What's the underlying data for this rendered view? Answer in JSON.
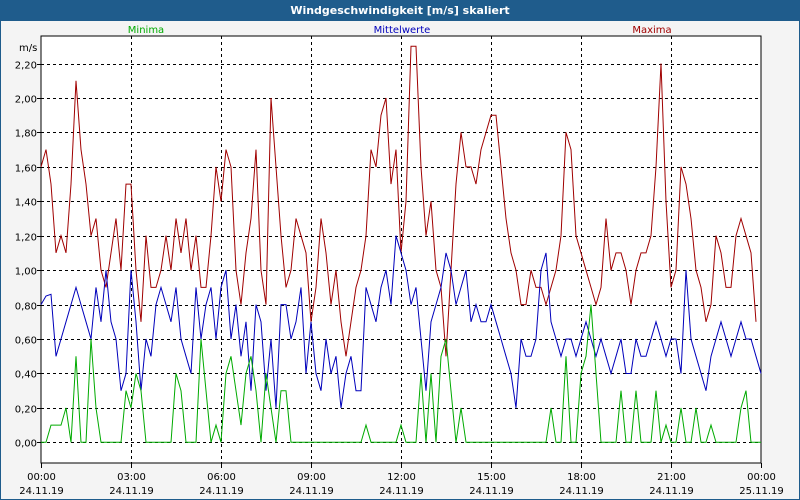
{
  "window": {
    "title": "Windgeschwindigkeit [m/s] skaliert"
  },
  "colors": {
    "min": "#00aa00",
    "mean": "#0000bb",
    "max": "#a00000",
    "titlebar": "#1f5c8c",
    "grid": "#000000"
  },
  "chart_data": {
    "type": "line",
    "title": "Windgeschwindigkeit [m/s] skaliert",
    "ylabel": "m/s",
    "ylim": [
      -0.12,
      2.36
    ],
    "yticks": [
      "0,00",
      "0,20",
      "0,40",
      "0,60",
      "0,80",
      "1,00",
      "1,20",
      "1,40",
      "1,60",
      "1,80",
      "2,00",
      "2,20"
    ],
    "xrange_hours": [
      0,
      24
    ],
    "xticks": [
      {
        "time": "00:00",
        "date": "24.11.19"
      },
      {
        "time": "03:00",
        "date": "24.11.19"
      },
      {
        "time": "06:00",
        "date": "24.11.19"
      },
      {
        "time": "09:00",
        "date": "24.11.19"
      },
      {
        "time": "12:00",
        "date": "24.11.19"
      },
      {
        "time": "15:00",
        "date": "24.11.19"
      },
      {
        "time": "18:00",
        "date": "24.11.19"
      },
      {
        "time": "21:00",
        "date": "24.11.19"
      },
      {
        "time": "00:00",
        "date": "25.11.19"
      }
    ],
    "legend": [
      "Minima",
      "Mittelwerte",
      "Maxima"
    ],
    "sample_interval_minutes": 10,
    "series": [
      {
        "name": "Maxima",
        "color": "#a00000",
        "values": [
          1.6,
          1.7,
          1.5,
          1.1,
          1.2,
          1.1,
          1.5,
          2.1,
          1.7,
          1.5,
          1.2,
          1.3,
          1.0,
          0.9,
          1.1,
          1.3,
          1.0,
          1.5,
          1.5,
          1.0,
          0.7,
          1.2,
          0.9,
          0.9,
          1.0,
          1.2,
          1.0,
          1.3,
          1.1,
          1.3,
          1.0,
          1.2,
          0.9,
          0.9,
          1.2,
          1.6,
          1.4,
          1.7,
          1.6,
          1.0,
          0.8,
          1.1,
          1.3,
          1.7,
          1.0,
          0.8,
          2.0,
          1.6,
          1.2,
          0.9,
          1.0,
          1.3,
          1.2,
          1.1,
          0.7,
          0.9,
          1.3,
          1.1,
          0.8,
          1.0,
          0.7,
          0.5,
          0.7,
          0.9,
          1.0,
          1.2,
          1.7,
          1.6,
          1.9,
          2.0,
          1.5,
          1.7,
          1.1,
          1.4,
          2.3,
          2.3,
          1.6,
          1.2,
          1.4,
          1.0,
          0.9,
          0.5,
          1.0,
          1.5,
          1.8,
          1.6,
          1.6,
          1.5,
          1.7,
          1.8,
          1.9,
          1.9,
          1.6,
          1.3,
          1.1,
          1.0,
          0.8,
          0.8,
          1.0,
          0.9,
          0.9,
          0.8,
          0.9,
          1.0,
          1.2,
          1.8,
          1.7,
          1.2,
          1.1,
          1.0,
          0.9,
          0.8,
          0.9,
          1.3,
          1.0,
          1.1,
          1.1,
          1.0,
          0.8,
          1.0,
          1.1,
          1.1,
          1.2,
          1.6,
          2.2,
          1.4,
          0.9,
          1.0,
          1.6,
          1.5,
          1.3,
          1.0,
          0.9,
          0.7,
          0.8,
          1.2,
          1.1,
          0.9,
          0.9,
          1.2,
          1.3,
          1.2,
          1.1,
          0.7
        ]
      },
      {
        "name": "Mittelwerte",
        "color": "#0000bb",
        "values": [
          0.8,
          0.85,
          0.86,
          0.5,
          0.6,
          0.7,
          0.8,
          0.9,
          0.8,
          0.7,
          0.6,
          0.9,
          0.7,
          1.0,
          0.7,
          0.6,
          0.3,
          0.4,
          1.0,
          0.7,
          0.3,
          0.6,
          0.5,
          0.8,
          0.9,
          0.8,
          0.7,
          0.9,
          0.6,
          0.5,
          0.4,
          0.9,
          0.6,
          0.8,
          0.9,
          0.6,
          0.9,
          1.0,
          0.6,
          0.8,
          0.5,
          0.7,
          0.3,
          0.8,
          0.7,
          0.3,
          0.6,
          0.2,
          0.8,
          0.8,
          0.6,
          0.7,
          0.9,
          0.4,
          0.7,
          0.4,
          0.3,
          0.6,
          0.4,
          0.5,
          0.2,
          0.4,
          0.5,
          0.3,
          0.3,
          0.9,
          0.8,
          0.7,
          0.9,
          1.0,
          0.8,
          1.2,
          1.1,
          1.0,
          0.8,
          0.9,
          0.6,
          0.3,
          0.7,
          0.8,
          0.9,
          1.1,
          1.0,
          0.8,
          0.9,
          1.0,
          0.7,
          0.8,
          0.7,
          0.7,
          0.8,
          0.7,
          0.6,
          0.5,
          0.4,
          0.2,
          0.6,
          0.5,
          0.5,
          0.6,
          1.0,
          1.1,
          0.7,
          0.6,
          0.5,
          0.6,
          0.6,
          0.5,
          0.6,
          0.7,
          0.6,
          0.5,
          0.6,
          0.5,
          0.4,
          0.5,
          0.6,
          0.4,
          0.4,
          0.6,
          0.5,
          0.5,
          0.6,
          0.7,
          0.6,
          0.5,
          0.6,
          0.6,
          0.4,
          1.0,
          0.6,
          0.5,
          0.4,
          0.3,
          0.5,
          0.6,
          0.7,
          0.6,
          0.5,
          0.6,
          0.7,
          0.6,
          0.6,
          0.5,
          0.4
        ]
      },
      {
        "name": "Minima",
        "color": "#00aa00",
        "values": [
          0.0,
          0.0,
          0.1,
          0.1,
          0.1,
          0.2,
          0.0,
          0.5,
          0.0,
          0.0,
          0.6,
          0.2,
          0.0,
          0.0,
          0.0,
          0.0,
          0.0,
          0.3,
          0.2,
          0.4,
          0.3,
          0.0,
          0.0,
          0.0,
          0.0,
          0.0,
          0.0,
          0.4,
          0.3,
          0.0,
          0.0,
          0.0,
          0.6,
          0.3,
          0.0,
          0.1,
          0.0,
          0.4,
          0.5,
          0.3,
          0.1,
          0.4,
          0.5,
          0.3,
          0.0,
          0.4,
          0.2,
          0.0,
          0.3,
          0.3,
          0.0,
          0.0,
          0.0,
          0.0,
          0.0,
          0.0,
          0.0,
          0.0,
          0.0,
          0.0,
          0.0,
          0.0,
          0.0,
          0.0,
          0.0,
          0.1,
          0.0,
          0.0,
          0.0,
          0.0,
          0.0,
          0.0,
          0.1,
          0.0,
          0.0,
          0.0,
          0.4,
          0.0,
          0.4,
          0.0,
          0.5,
          0.6,
          0.3,
          0.0,
          0.2,
          0.0,
          0.0,
          0.0,
          0.0,
          0.0,
          0.0,
          0.0,
          0.0,
          0.0,
          0.0,
          0.0,
          0.0,
          0.0,
          0.0,
          0.0,
          0.0,
          0.0,
          0.2,
          0.0,
          0.0,
          0.5,
          0.0,
          0.0,
          0.4,
          0.5,
          0.8,
          0.4,
          0.0,
          0.0,
          0.0,
          0.0,
          0.3,
          0.0,
          0.0,
          0.3,
          0.0,
          0.0,
          0.0,
          0.3,
          0.0,
          0.1,
          0.0,
          0.0,
          0.2,
          0.0,
          0.0,
          0.2,
          0.0,
          0.0,
          0.1,
          0.0,
          0.0,
          0.0,
          0.0,
          0.0,
          0.2,
          0.3,
          0.0,
          0.0,
          0.0,
          0.0
        ]
      }
    ]
  }
}
